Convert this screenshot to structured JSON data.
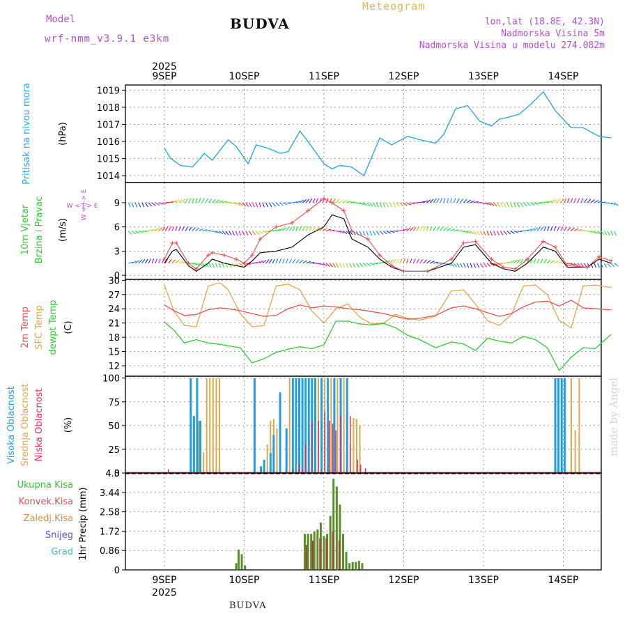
{
  "header": {
    "model_label": "Model",
    "model_run": "wrf-nmm_v3.9.1 e3km",
    "station": "BUDVA",
    "title": "Meteogram",
    "lonlat": "lon,lat (18.8E, 42.3N)",
    "elevation": "Nadmorska Visina 5m",
    "model_elevation": "Nadmorska Visina u modelu 274.082m",
    "footer_station": "BUDVA",
    "credit": "made by Angel"
  },
  "colors": {
    "pressure": "#2aa8e0",
    "temp2m": "#e84f4f",
    "sfc": "#e0a84a",
    "dewpoint": "#2ccc2c",
    "total_precip": "#5a8e2a",
    "conv_precip": "#b23a3a",
    "high_cloud": "#1f9ee0",
    "mid_cloud": "#e0a84a",
    "low_cloud": "#e0305a",
    "wind_speed": "#111111",
    "gust": "#e84f4f"
  },
  "chart_data": [
    {
      "id": "pressure",
      "type": "line",
      "ylabel": "Pritisak na nivou mora",
      "units": "(hPa)",
      "ylim": [
        1013.6,
        1019.3
      ],
      "yticks": [
        1014,
        1015,
        1016,
        1017,
        1018,
        1019
      ],
      "x_days": [
        0.0,
        0.08,
        0.2,
        0.35,
        0.5,
        0.6,
        0.8,
        0.9,
        1.05,
        1.15,
        1.3,
        1.45,
        1.55,
        1.7,
        1.8,
        2.0,
        2.1,
        2.2,
        2.35,
        2.5,
        2.7,
        2.85,
        3.05,
        3.2,
        3.4,
        3.5,
        3.65,
        3.8,
        3.95,
        4.1,
        4.2,
        4.3,
        4.45,
        4.6,
        4.75,
        4.9,
        5.1,
        5.25,
        5.45,
        5.6
      ],
      "values": [
        1015.6,
        1015.0,
        1014.6,
        1014.5,
        1015.3,
        1014.9,
        1016.1,
        1015.7,
        1014.7,
        1015.8,
        1015.6,
        1015.3,
        1015.4,
        1016.6,
        1016.0,
        1014.7,
        1014.4,
        1014.6,
        1014.5,
        1014.0,
        1016.2,
        1015.8,
        1016.3,
        1016.1,
        1015.9,
        1016.4,
        1017.9,
        1018.1,
        1017.2,
        1016.9,
        1017.3,
        1017.4,
        1017.6,
        1018.2,
        1018.9,
        1017.8,
        1016.8,
        1016.8,
        1016.3,
        1016.2
      ]
    },
    {
      "id": "wind",
      "type": "line",
      "ylabel_1": "10m Vjetar",
      "ylabel_2": "Brzina i Pravac",
      "units": "(m/s)",
      "compass": "W <-|-> E",
      "compass_vertical": "N <-|-> S",
      "ylim": [
        -0.5,
        11.5
      ],
      "yticks": [
        0,
        3,
        6,
        9
      ],
      "x_days": [
        0.0,
        0.1,
        0.15,
        0.3,
        0.4,
        0.55,
        0.6,
        0.75,
        0.9,
        1.0,
        1.1,
        1.2,
        1.4,
        1.6,
        1.8,
        2.0,
        2.1,
        2.25,
        2.35,
        2.55,
        2.7,
        2.85,
        3.0,
        3.3,
        3.6,
        3.75,
        3.9,
        4.1,
        4.25,
        4.4,
        4.55,
        4.75,
        4.9,
        5.05,
        5.3,
        5.45,
        5.6
      ],
      "speed": [
        1.5,
        3.0,
        3.2,
        1.2,
        0.5,
        1.5,
        2.0,
        1.5,
        1.2,
        1.0,
        1.8,
        2.8,
        3.0,
        3.5,
        5.0,
        6.0,
        7.5,
        7.0,
        4.5,
        3.5,
        2.0,
        1.0,
        0.5,
        0.5,
        1.5,
        3.5,
        3.8,
        1.5,
        0.8,
        0.5,
        1.5,
        3.5,
        3.0,
        1.0,
        1.0,
        2.0,
        1.5
      ],
      "gust": [
        2.0,
        4.0,
        4.0,
        1.5,
        0.8,
        2.5,
        2.8,
        2.5,
        2.0,
        1.5,
        2.5,
        4.5,
        6.0,
        6.5,
        8.0,
        9.5,
        9.0,
        8.0,
        5.5,
        4.5,
        2.5,
        1.2,
        0.5,
        0.5,
        2.0,
        4.0,
        4.2,
        2.0,
        1.0,
        0.8,
        2.0,
        4.2,
        3.5,
        1.2,
        1.0,
        2.3,
        1.8
      ]
    },
    {
      "id": "temperature",
      "type": "line",
      "ylabel_1": "2m Temp",
      "ylabel_2": "SFC Temp",
      "ylabel_3": "dewpt Temp",
      "units": "(C)",
      "ylim": [
        9.8,
        30.2
      ],
      "yticks": [
        12,
        15,
        18,
        21,
        24,
        27,
        30
      ],
      "x_days": [
        0.0,
        0.12,
        0.25,
        0.4,
        0.55,
        0.7,
        0.8,
        0.95,
        1.1,
        1.25,
        1.4,
        1.55,
        1.7,
        1.85,
        2.0,
        2.15,
        2.3,
        2.45,
        2.6,
        2.75,
        2.9,
        3.05,
        3.2,
        3.4,
        3.6,
        3.75,
        3.9,
        4.05,
        4.2,
        4.35,
        4.5,
        4.65,
        4.8,
        4.95,
        5.1,
        5.25,
        5.4,
        5.6
      ],
      "temp2m": [
        24.8,
        23.6,
        22.6,
        22.8,
        23.8,
        24.2,
        24.0,
        23.6,
        23.0,
        22.4,
        22.6,
        24.0,
        24.8,
        24.2,
        24.6,
        24.4,
        24.0,
        23.8,
        23.4,
        23.0,
        22.4,
        21.8,
        22.0,
        22.6,
        24.2,
        24.6,
        24.0,
        23.2,
        22.4,
        23.0,
        24.4,
        25.4,
        25.6,
        24.6,
        25.8,
        24.2,
        24.0,
        23.8
      ],
      "sfc": [
        29.0,
        23.5,
        20.5,
        20.2,
        28.8,
        29.5,
        28.0,
        23.0,
        20.2,
        20.5,
        28.8,
        29.2,
        28.0,
        23.5,
        21.0,
        24.0,
        25.0,
        22.2,
        20.8,
        21.0,
        22.8,
        22.0,
        21.6,
        22.4,
        27.8,
        28.0,
        25.0,
        21.5,
        20.5,
        22.8,
        28.8,
        29.0,
        27.0,
        21.5,
        20.0,
        28.8,
        29.0,
        28.5
      ],
      "dewpoint": [
        21.2,
        19.5,
        16.8,
        17.5,
        16.8,
        16.5,
        16.2,
        15.8,
        12.6,
        13.5,
        14.8,
        15.5,
        16.0,
        15.6,
        16.4,
        21.4,
        21.4,
        20.8,
        20.6,
        20.9,
        20.0,
        18.4,
        17.5,
        15.8,
        17.0,
        16.6,
        15.2,
        17.8,
        17.2,
        16.8,
        18.2,
        17.5,
        15.8,
        11.0,
        13.8,
        15.8,
        15.6,
        18.6
      ]
    },
    {
      "id": "clouds",
      "type": "bar",
      "ylabel_1": "Visoka Oblacnost",
      "ylabel_2": "Srednja Oblacnost",
      "ylabel_3": "Niska Oblacnost",
      "units": "(%)",
      "ylim": [
        0,
        102
      ],
      "yticks": [
        0,
        25,
        50,
        75,
        100
      ],
      "high": [
        [
          0.33,
          100
        ],
        [
          0.37,
          60
        ],
        [
          0.41,
          100
        ],
        [
          0.45,
          55
        ],
        [
          1.13,
          100
        ],
        [
          1.21,
          7
        ],
        [
          1.25,
          14
        ],
        [
          1.33,
          21
        ],
        [
          1.37,
          40
        ],
        [
          1.45,
          85
        ],
        [
          1.53,
          47
        ],
        [
          1.61,
          100
        ],
        [
          1.65,
          100
        ],
        [
          1.69,
          100
        ],
        [
          1.73,
          100
        ],
        [
          1.77,
          100
        ],
        [
          1.81,
          100
        ],
        [
          1.85,
          100
        ],
        [
          1.89,
          100
        ],
        [
          1.97,
          100
        ],
        [
          2.05,
          100
        ],
        [
          2.13,
          100
        ],
        [
          2.21,
          100
        ],
        [
          2.29,
          100
        ],
        [
          4.9,
          100
        ],
        [
          4.94,
          100
        ],
        [
          4.98,
          100
        ],
        [
          5.02,
          100
        ]
      ],
      "mid": [
        [
          0.43,
          55
        ],
        [
          0.49,
          22
        ],
        [
          0.53,
          100
        ],
        [
          0.57,
          100
        ],
        [
          0.61,
          100
        ],
        [
          0.65,
          100
        ],
        [
          0.69,
          100
        ],
        [
          1.29,
          30
        ],
        [
          1.33,
          55
        ],
        [
          1.37,
          57
        ],
        [
          1.41,
          47
        ],
        [
          1.57,
          100
        ],
        [
          1.61,
          100
        ],
        [
          1.73,
          100
        ],
        [
          1.77,
          100
        ],
        [
          1.81,
          100
        ],
        [
          1.85,
          100
        ],
        [
          1.89,
          100
        ],
        [
          1.93,
          100
        ],
        [
          1.97,
          100
        ],
        [
          2.01,
          100
        ],
        [
          2.09,
          100
        ],
        [
          2.17,
          100
        ],
        [
          2.25,
          100
        ],
        [
          2.33,
          30
        ],
        [
          2.37,
          58
        ],
        [
          2.41,
          57
        ],
        [
          2.45,
          50
        ],
        [
          5.1,
          100
        ],
        [
          5.15,
          45
        ],
        [
          5.2,
          100
        ]
      ],
      "low": [
        [
          0.05,
          4
        ],
        [
          1.61,
          4
        ],
        [
          1.69,
          10
        ],
        [
          1.73,
          6
        ],
        [
          1.77,
          30
        ],
        [
          1.85,
          55
        ],
        [
          1.93,
          55
        ],
        [
          2.01,
          65
        ],
        [
          2.07,
          55
        ],
        [
          2.11,
          52
        ],
        [
          2.15,
          45
        ],
        [
          2.21,
          60
        ],
        [
          2.33,
          60
        ],
        [
          2.42,
          14
        ],
        [
          2.46,
          9
        ],
        [
          2.52,
          5
        ]
      ]
    },
    {
      "id": "precipitation",
      "type": "bar",
      "legend": [
        "Ukupna Kisa",
        "Konvek.Kisa",
        "Zaledj.Kisa",
        "Snijeg",
        "Grad"
      ],
      "ylabel": "1hr Precip",
      "units": "(mm)",
      "ylim": [
        0,
        4.3
      ],
      "yticks": [
        0,
        0.86,
        1.72,
        2.58,
        3.44,
        4.3
      ],
      "ytick_labels": [
        "0",
        "0.86",
        "1.72",
        "2.58",
        "3.44",
        "4.3"
      ],
      "total": [
        [
          0.9,
          0.3
        ],
        [
          0.93,
          0.9
        ],
        [
          0.97,
          0.7
        ],
        [
          1.01,
          0.2
        ],
        [
          1.76,
          1.6
        ],
        [
          1.8,
          1.6
        ],
        [
          1.84,
          1.6
        ],
        [
          1.88,
          1.7
        ],
        [
          1.92,
          1.8
        ],
        [
          1.96,
          2.1
        ],
        [
          2.0,
          1.5
        ],
        [
          2.04,
          1.6
        ],
        [
          2.08,
          2.4
        ],
        [
          2.12,
          4.05
        ],
        [
          2.16,
          3.7
        ],
        [
          2.2,
          2.9
        ],
        [
          2.24,
          1.6
        ],
        [
          2.28,
          0.8
        ],
        [
          2.32,
          0.3
        ],
        [
          2.36,
          0.35
        ],
        [
          2.4,
          0.35
        ],
        [
          2.44,
          0.4
        ],
        [
          2.48,
          0.3
        ]
      ],
      "convective": [
        [
          1.78,
          1.1
        ],
        [
          1.86,
          1.3
        ],
        [
          1.95,
          1.4
        ],
        [
          2.03,
          1.4
        ],
        [
          2.11,
          1.7
        ],
        [
          2.19,
          1.3
        ]
      ]
    }
  ],
  "axes": {
    "top_year": "2025",
    "bottom_year": "2025",
    "days": [
      "9SEP",
      "10SEP",
      "11SEP",
      "12SEP",
      "13SEP",
      "14SEP"
    ]
  }
}
